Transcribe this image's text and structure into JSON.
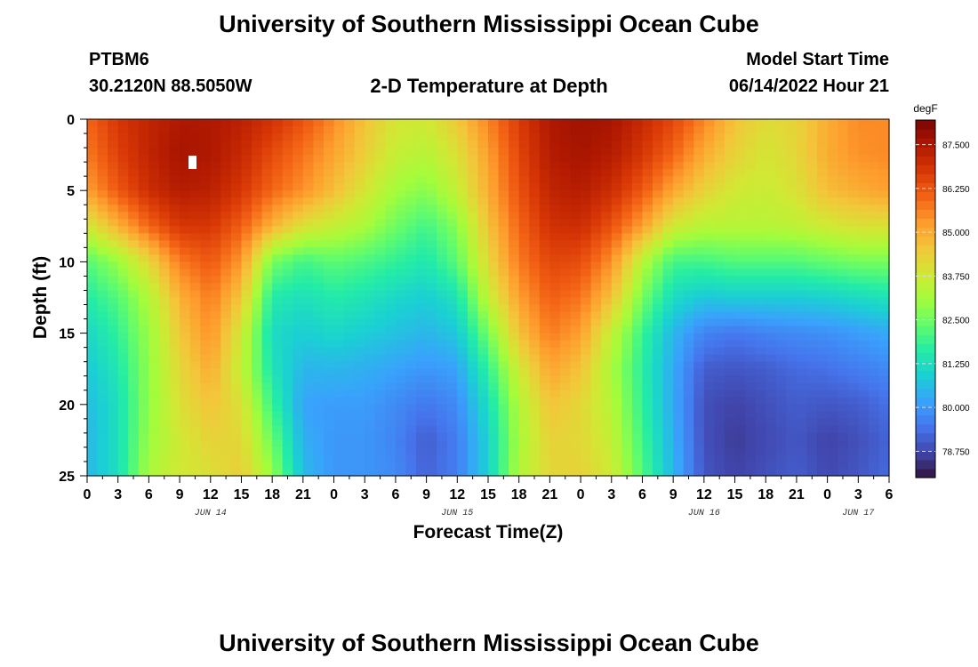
{
  "page": {
    "title": "University of Southern Mississippi Ocean Cube",
    "title_repeat": "University of Southern Mississippi Ocean Cube",
    "station_id": "PTBM6",
    "coordinates": "30.2120N  88.5050W",
    "subtitle": "2-D Temperature at Depth",
    "model_start_label": "Model Start Time",
    "model_start_value": "06/14/2022 Hour 21"
  },
  "chart_data": {
    "type": "heatmap",
    "xlabel": "Forecast Time(Z)",
    "ylabel": "Depth (ft)",
    "colorbar_units": "degF",
    "x_tick_labels": [
      "0",
      "3",
      "6",
      "9",
      "12",
      "15",
      "18",
      "21",
      "0",
      "3",
      "6",
      "9",
      "12",
      "15",
      "18",
      "21",
      "0",
      "3",
      "6",
      "9",
      "12",
      "15",
      "18",
      "21",
      "0",
      "3",
      "6"
    ],
    "x_range_hours": [
      0,
      78
    ],
    "date_labels": [
      {
        "label": "JUN 14",
        "hour": 12
      },
      {
        "label": "JUN 15",
        "hour": 36
      },
      {
        "label": "JUN 16",
        "hour": 60
      },
      {
        "label": "JUN 17",
        "hour": 75
      }
    ],
    "y_tick_labels": [
      "0",
      "5",
      "10",
      "15",
      "20",
      "25"
    ],
    "ylim": [
      0,
      25
    ],
    "y_inverted": true,
    "colorbar_range": [
      78.0,
      88.2
    ],
    "colorbar_ticks": [
      "87.500",
      "86.250",
      "85.000",
      "83.750",
      "82.500",
      "81.250",
      "80.000",
      "78.750"
    ],
    "depths_ft": [
      0,
      2.5,
      5,
      7.5,
      10,
      12.5,
      15,
      17.5,
      20,
      22.5,
      25
    ],
    "hours": [
      0,
      3,
      6,
      9,
      12,
      15,
      18,
      21,
      24,
      27,
      30,
      33,
      36,
      39,
      42,
      45,
      48,
      51,
      54,
      57,
      60,
      63,
      66,
      69,
      72,
      75,
      78
    ],
    "temperature_degF": [
      [
        86.0,
        86.8,
        87.2,
        87.5,
        87.5,
        87.3,
        86.9,
        86.3,
        85.5,
        84.6,
        83.9,
        83.8,
        84.5,
        85.6,
        86.7,
        87.5,
        87.7,
        87.6,
        87.1,
        86.5,
        85.6,
        84.6,
        84.1,
        84.3,
        85.0,
        85.5,
        85.5
      ],
      [
        85.7,
        86.6,
        87.2,
        87.6,
        87.5,
        87.1,
        86.4,
        85.8,
        85.1,
        84.4,
        83.6,
        83.4,
        84.0,
        85.2,
        86.5,
        87.4,
        87.6,
        87.4,
        86.8,
        86.0,
        85.0,
        84.3,
        83.9,
        84.2,
        85.0,
        85.4,
        85.5
      ],
      [
        85.2,
        86.2,
        87.0,
        87.4,
        87.3,
        86.8,
        86.0,
        85.4,
        84.7,
        83.9,
        83.1,
        82.8,
        83.6,
        85.0,
        86.3,
        87.2,
        87.4,
        87.0,
        86.2,
        85.1,
        84.3,
        83.8,
        83.7,
        84.0,
        84.7,
        85.0,
        85.2
      ],
      [
        83.8,
        84.9,
        86.0,
        86.8,
        86.8,
        86.1,
        84.9,
        84.0,
        83.6,
        83.2,
        82.5,
        82.0,
        82.8,
        84.6,
        86.0,
        86.9,
        87.0,
        86.3,
        85.2,
        83.8,
        83.4,
        83.4,
        83.4,
        83.5,
        83.8,
        84.0,
        84.0
      ],
      [
        82.2,
        83.0,
        84.2,
        85.7,
        86.2,
        85.3,
        82.6,
        82.0,
        82.3,
        82.1,
        81.8,
        81.5,
        82.3,
        84.2,
        85.7,
        86.5,
        86.4,
        85.4,
        83.4,
        82.0,
        82.0,
        82.2,
        82.2,
        82.2,
        82.4,
        82.6,
        82.6
      ],
      [
        81.6,
        82.2,
        83.3,
        84.9,
        85.7,
        84.5,
        81.6,
        81.3,
        81.6,
        81.4,
        81.1,
        80.9,
        81.4,
        83.6,
        85.2,
        86.1,
        85.8,
        84.6,
        82.6,
        81.2,
        80.8,
        80.9,
        80.9,
        80.9,
        81.0,
        81.2,
        81.4
      ],
      [
        81.1,
        81.8,
        83.0,
        84.5,
        85.4,
        83.8,
        81.2,
        80.9,
        81.1,
        80.9,
        80.7,
        80.5,
        80.8,
        82.6,
        84.6,
        85.7,
        85.2,
        83.6,
        81.9,
        80.5,
        79.7,
        79.5,
        79.7,
        79.8,
        79.9,
        80.1,
        80.3
      ],
      [
        80.8,
        81.5,
        82.9,
        84.2,
        85.0,
        83.6,
        81.4,
        80.5,
        80.5,
        80.4,
        80.2,
        80.0,
        80.2,
        81.8,
        83.8,
        85.1,
        84.6,
        83.2,
        81.7,
        80.3,
        79.1,
        79.0,
        79.1,
        79.3,
        79.4,
        79.6,
        79.8
      ],
      [
        80.6,
        81.3,
        82.9,
        84.0,
        84.6,
        84.0,
        81.9,
        80.2,
        80.1,
        80.1,
        79.8,
        79.5,
        79.8,
        81.3,
        83.3,
        84.6,
        84.2,
        83.4,
        81.8,
        80.3,
        78.9,
        78.7,
        78.9,
        79.1,
        79.0,
        79.1,
        79.4
      ],
      [
        80.5,
        81.3,
        83.0,
        83.8,
        84.3,
        84.2,
        82.5,
        80.4,
        80.0,
        80.0,
        79.7,
        79.1,
        79.6,
        81.0,
        83.2,
        84.3,
        84.2,
        83.6,
        82.0,
        80.4,
        78.9,
        78.6,
        78.8,
        79.0,
        78.7,
        78.9,
        79.2
      ],
      [
        80.5,
        81.3,
        83.2,
        83.8,
        84.0,
        84.4,
        83.0,
        80.6,
        80.0,
        80.0,
        79.8,
        79.2,
        79.6,
        81.0,
        83.3,
        84.2,
        84.3,
        83.8,
        82.2,
        80.5,
        79.0,
        78.7,
        78.9,
        79.1,
        78.8,
        79.0,
        79.3
      ]
    ]
  },
  "colors": {
    "colormap": [
      "#30123b",
      "#4145ab",
      "#4675ed",
      "#39a2fc",
      "#1bcfd4",
      "#24eca6",
      "#61fc6c",
      "#a4fc3b",
      "#d1e834",
      "#f3c63a",
      "#fe9b2d",
      "#f36315",
      "#d93806",
      "#b11901",
      "#7a0403"
    ]
  }
}
